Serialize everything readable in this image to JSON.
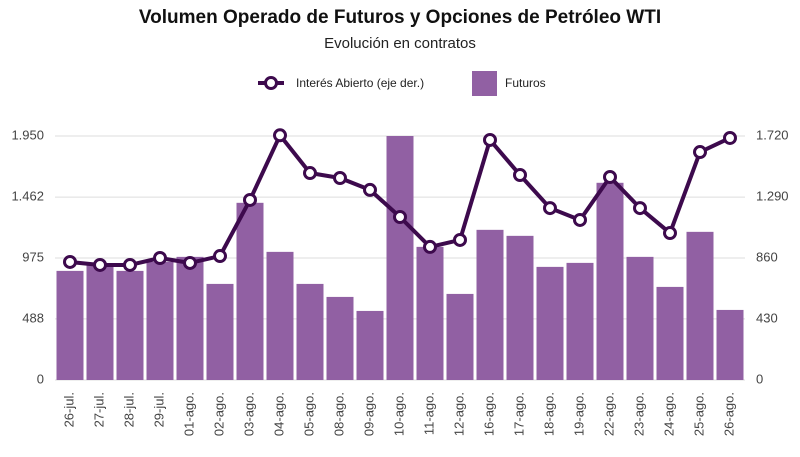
{
  "chart_data": {
    "type": "combo",
    "title": "Volumen Operado de Futuros y Opciones de Petróleo WTI",
    "subtitle": "Evolución en contratos",
    "categories": [
      "26-jul.",
      "27-jul.",
      "28-jul.",
      "29-jul.",
      "01-ago.",
      "02-ago.",
      "03-ago.",
      "04-ago.",
      "05-ago.",
      "08-ago.",
      "09-ago.",
      "10-ago.",
      "11-ago.",
      "12-ago.",
      "16-ago.",
      "17-ago.",
      "18-ago.",
      "19-ago.",
      "22-ago.",
      "23-ago.",
      "24-ago.",
      "25-ago.",
      "26-ago."
    ],
    "series": [
      {
        "name": "Interés Abierto (eje der.)",
        "type": "line",
        "axis": "y2",
        "color": "#3d0a4d",
        "values": [
          832,
          811,
          811,
          860,
          825,
          874,
          1269,
          1725,
          1459,
          1424,
          1340,
          1149,
          938,
          987,
          1692,
          1445,
          1212,
          1128,
          1431,
          1212,
          1036,
          1607,
          1706
        ]
      },
      {
        "name": "Futuros",
        "type": "bar",
        "color": "#9160a3",
        "values": [
          872,
          920,
          872,
          944,
          984,
          768,
          1416,
          1024,
          768,
          664,
          552,
          1950,
          1064,
          688,
          1200,
          1152,
          904,
          936,
          1576,
          984,
          744,
          1184,
          560
        ]
      }
    ],
    "ylim": [
      0,
      1950
    ],
    "yticks": [
      0,
      488,
      975,
      {
        "value": 1462,
        "label": "1.462"
      },
      {
        "value": 1950,
        "label": "1.950"
      }
    ],
    "y2lim": [
      0,
      1720
    ],
    "y2ticks": [
      0,
      430,
      860,
      {
        "value": 1290,
        "label": "1.290"
      },
      {
        "value": 1720,
        "label": "1.720"
      }
    ],
    "grid": true
  }
}
